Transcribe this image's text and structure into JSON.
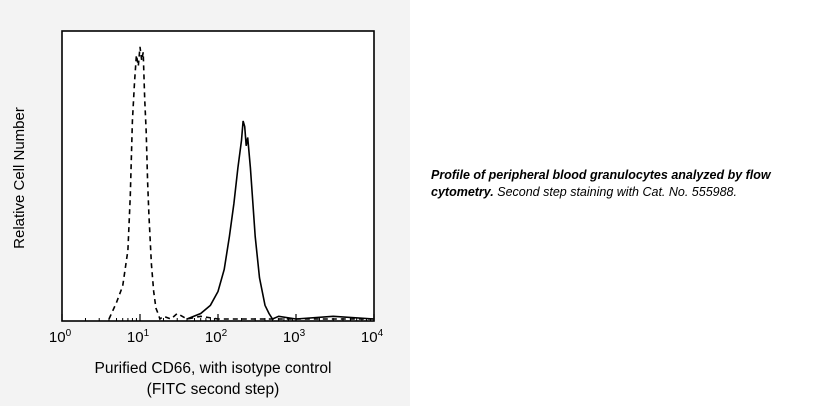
{
  "chart_data": {
    "type": "line",
    "xlabel_line1": "Purified CD66, with isotype control",
    "xlabel_line2": "(FITC second step)",
    "ylabel": "Relative Cell Number",
    "x_scale": "log",
    "xlim": [
      1,
      10000
    ],
    "ylim": [
      0,
      100
    ],
    "x_ticks": [
      {
        "value": 1,
        "base": "10",
        "exp": "0"
      },
      {
        "value": 10,
        "base": "10",
        "exp": "1"
      },
      {
        "value": 100,
        "base": "10",
        "exp": "2"
      },
      {
        "value": 1000,
        "base": "10",
        "exp": "3"
      },
      {
        "value": 10000,
        "base": "10",
        "exp": "4"
      }
    ],
    "grid": false,
    "series": [
      {
        "style": "dashed",
        "x": [
          4.0,
          5.0,
          6.0,
          7.0,
          7.5,
          8.0,
          8.5,
          9.0,
          9.5,
          10.0,
          10.5,
          11.0,
          11.5,
          12.0,
          12.5,
          13.0,
          14.0,
          15.0,
          16.0,
          17.0,
          18.0,
          20.0,
          25.0,
          30.0,
          40.0,
          60.0,
          100.0,
          1000.0,
          10000.0
        ],
        "y": [
          0,
          6,
          12,
          25,
          45,
          72,
          86,
          96,
          92,
          99,
          94,
          97,
          80,
          68,
          50,
          38,
          20,
          10,
          4,
          2,
          0,
          1,
          0,
          2,
          0,
          1,
          0,
          0,
          0
        ]
      },
      {
        "style": "solid",
        "x": [
          40.0,
          60.0,
          80.0,
          100.0,
          120.0,
          140.0,
          160.0,
          180.0,
          200.0,
          210.0,
          220.0,
          230.0,
          240.0,
          260.0,
          280.0,
          300.0,
          340.0,
          400.0,
          450.0,
          500.0,
          600.0,
          1000.0,
          3000.0,
          10000.0
        ],
        "y": [
          0,
          2,
          5,
          10,
          18,
          30,
          42,
          55,
          65,
          72,
          70,
          63,
          66,
          55,
          42,
          30,
          15,
          5,
          2,
          0,
          1,
          0,
          1,
          0
        ]
      }
    ]
  },
  "caption": {
    "bold": "Profile of peripheral blood granulocytes analyzed by flow cytometry.",
    "normal": " Second step staining with Cat. No. 555988."
  }
}
